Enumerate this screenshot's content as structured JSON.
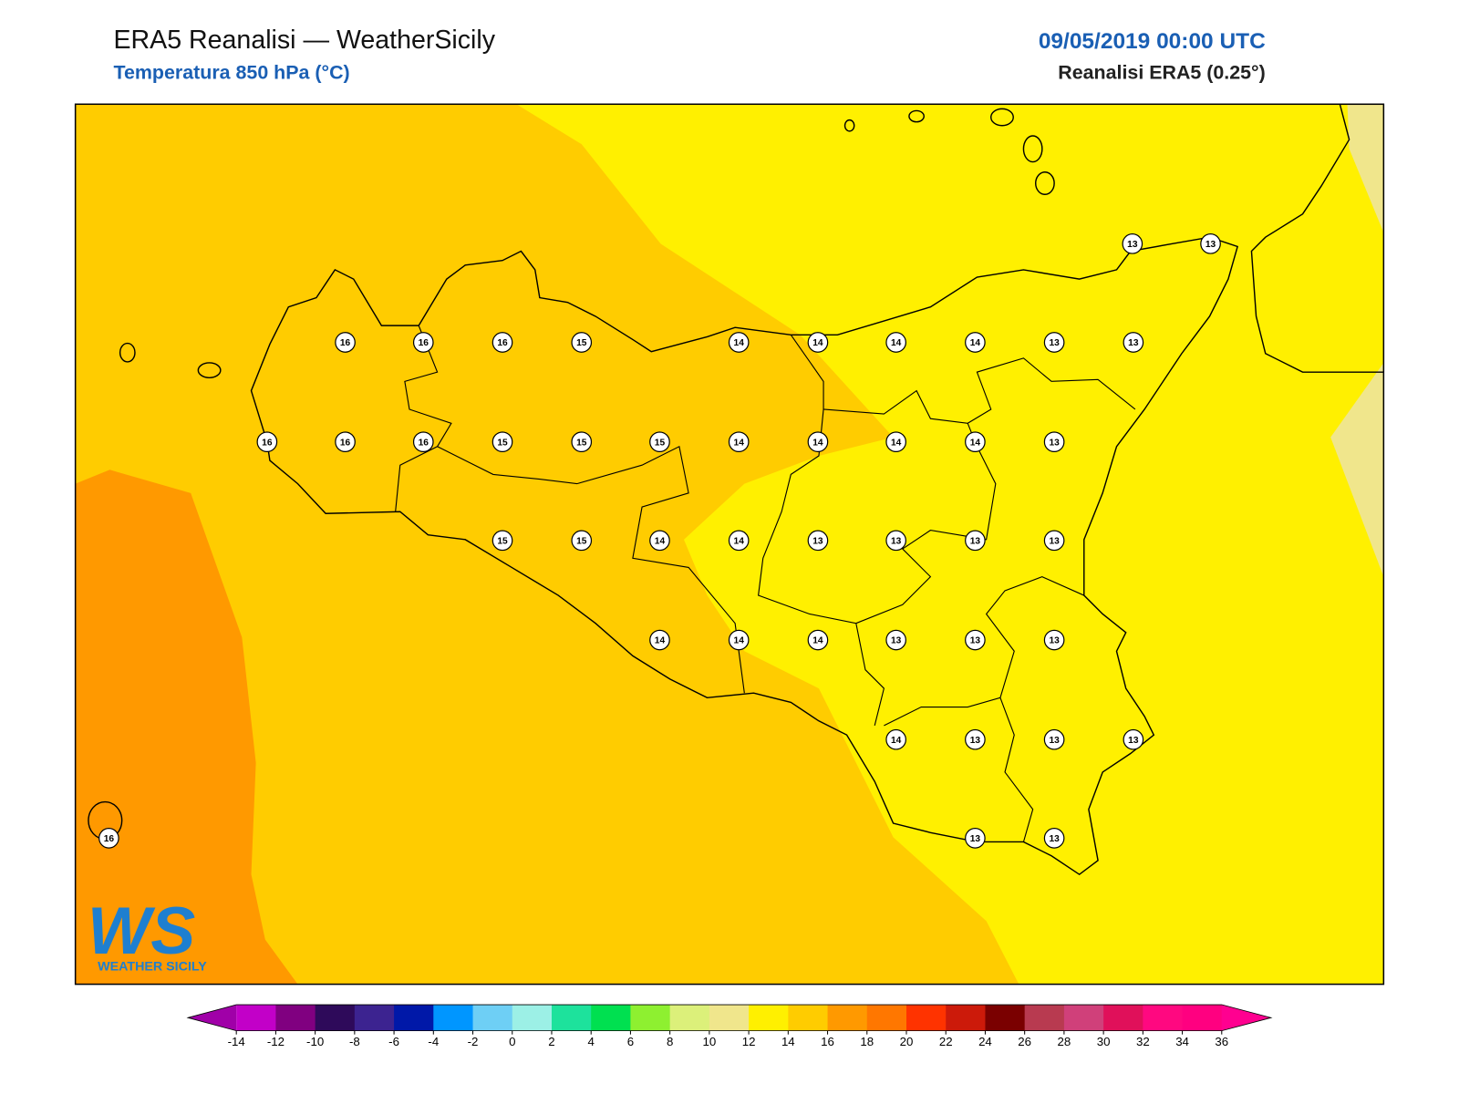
{
  "header": {
    "title": "ERA5 Reanalisi — WeatherSicily",
    "subtitle": "Temperatura 850 hPa (°C)",
    "valid_time": "09/05/2019 00:00 UTC",
    "source": "Reanalisi ERA5 (0.25°)"
  },
  "stations": [
    13,
    13,
    16,
    16,
    16,
    15,
    14,
    14,
    14,
    14,
    13,
    13,
    16,
    16,
    16,
    15,
    15,
    15,
    14,
    14,
    14,
    14,
    13,
    15,
    15,
    14,
    14,
    13,
    13,
    13,
    13,
    14,
    14,
    14,
    13,
    13,
    13,
    14,
    13,
    13,
    13,
    13,
    13,
    16
  ],
  "colorbar": {
    "ticks": [
      -14,
      -12,
      -10,
      -8,
      -6,
      -4,
      -2,
      0,
      2,
      4,
      6,
      8,
      10,
      12,
      14,
      16,
      18,
      20,
      22,
      24,
      26,
      28,
      30,
      32,
      34,
      36
    ],
    "colors": [
      "#c200c8",
      "#800080",
      "#2e0a5a",
      "#3c2390",
      "#0018a8",
      "#0096ff",
      "#6ecff5",
      "#9cf0e6",
      "#1de29c",
      "#00e050",
      "#8ef030",
      "#dcf07a",
      "#f0e68c",
      "#fff000",
      "#ffcc00",
      "#ff9900",
      "#ff7700",
      "#ff3300",
      "#cc1a0a",
      "#7a0000",
      "#b83a50",
      "#d0407a",
      "#e0105a",
      "#ff0880",
      "#ff0080"
    ],
    "under_color": "#a000a8",
    "over_color": "#ff0090"
  },
  "logo": {
    "initials": "WS",
    "name": "WEATHER SICILY"
  }
}
